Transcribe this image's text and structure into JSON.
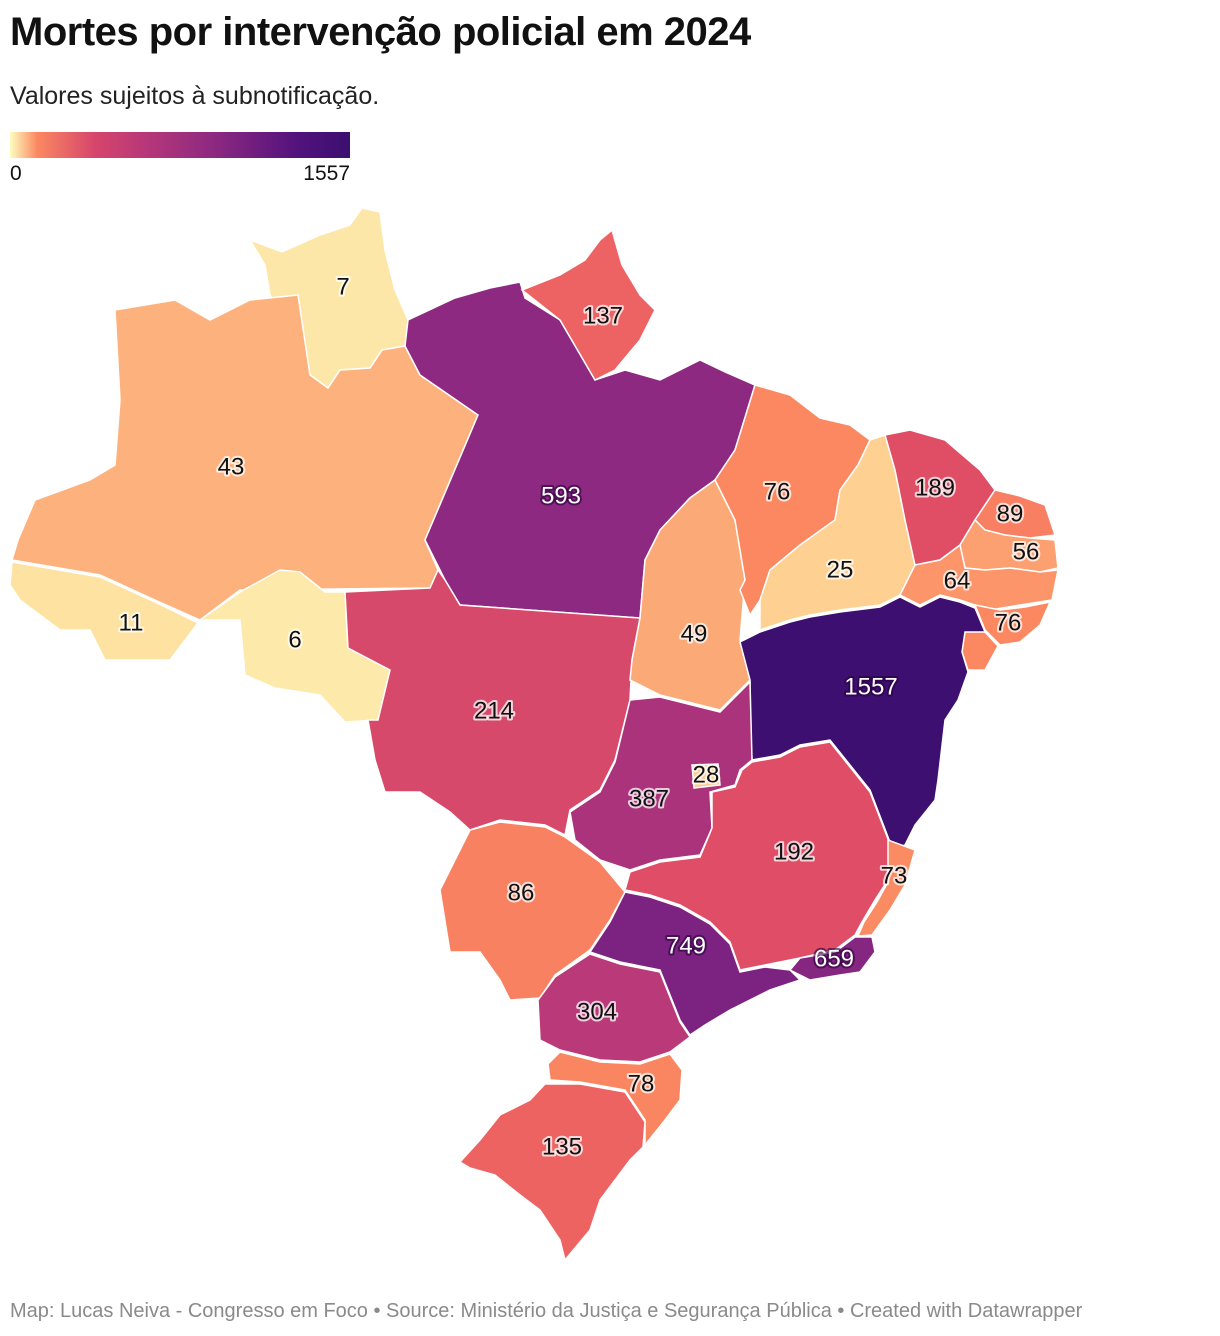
{
  "header": {
    "title": "Mortes por intervenção policial em 2024",
    "subtitle": "Valores sujeitos à subnotificação."
  },
  "legend": {
    "min": "0",
    "max": "1557"
  },
  "colors": {
    "scale": [
      "#fcfdbf",
      "#fed395",
      "#fb8861",
      "#e75263",
      "#d6456c",
      "#b73779",
      "#8c2981",
      "#51127c",
      "#3b0f70"
    ]
  },
  "map": {
    "states": [
      {
        "id": "RR",
        "value": 7,
        "label": "7"
      },
      {
        "id": "AM",
        "value": 43,
        "label": "43"
      },
      {
        "id": "AC",
        "value": 11,
        "label": "11"
      },
      {
        "id": "RO",
        "value": 6,
        "label": "6"
      },
      {
        "id": "PA",
        "value": 593,
        "label": "593"
      },
      {
        "id": "AP",
        "value": 137,
        "label": "137"
      },
      {
        "id": "MT",
        "value": 214,
        "label": "214"
      },
      {
        "id": "TO",
        "value": 49,
        "label": "49"
      },
      {
        "id": "MA",
        "value": 76,
        "label": "76"
      },
      {
        "id": "PI",
        "value": 25,
        "label": "25"
      },
      {
        "id": "CE",
        "value": 189,
        "label": "189"
      },
      {
        "id": "RN",
        "value": 89,
        "label": "89"
      },
      {
        "id": "PB",
        "value": 56,
        "label": "56"
      },
      {
        "id": "PE",
        "value": 64,
        "label": "64"
      },
      {
        "id": "AL",
        "value": 76,
        "label": "76"
      },
      {
        "id": "SE",
        "value": 76,
        "label": ""
      },
      {
        "id": "BA",
        "value": 1557,
        "label": "1557"
      },
      {
        "id": "GO",
        "value": 387,
        "label": "387"
      },
      {
        "id": "DF",
        "value": 28,
        "label": "28"
      },
      {
        "id": "MG",
        "value": 192,
        "label": "192"
      },
      {
        "id": "ES",
        "value": 73,
        "label": "73"
      },
      {
        "id": "MS",
        "value": 86,
        "label": "86"
      },
      {
        "id": "SP",
        "value": 749,
        "label": "749"
      },
      {
        "id": "RJ",
        "value": 659,
        "label": "659"
      },
      {
        "id": "PR",
        "value": 304,
        "label": "304"
      },
      {
        "id": "SC",
        "value": 78,
        "label": "78"
      },
      {
        "id": "RS",
        "value": 135,
        "label": "135"
      }
    ]
  },
  "footer": {
    "credit": "Map: Lucas Neiva - Congresso em Foco • Source: Ministério da Justiça e Segurança Pública • Created with Datawrapper"
  }
}
